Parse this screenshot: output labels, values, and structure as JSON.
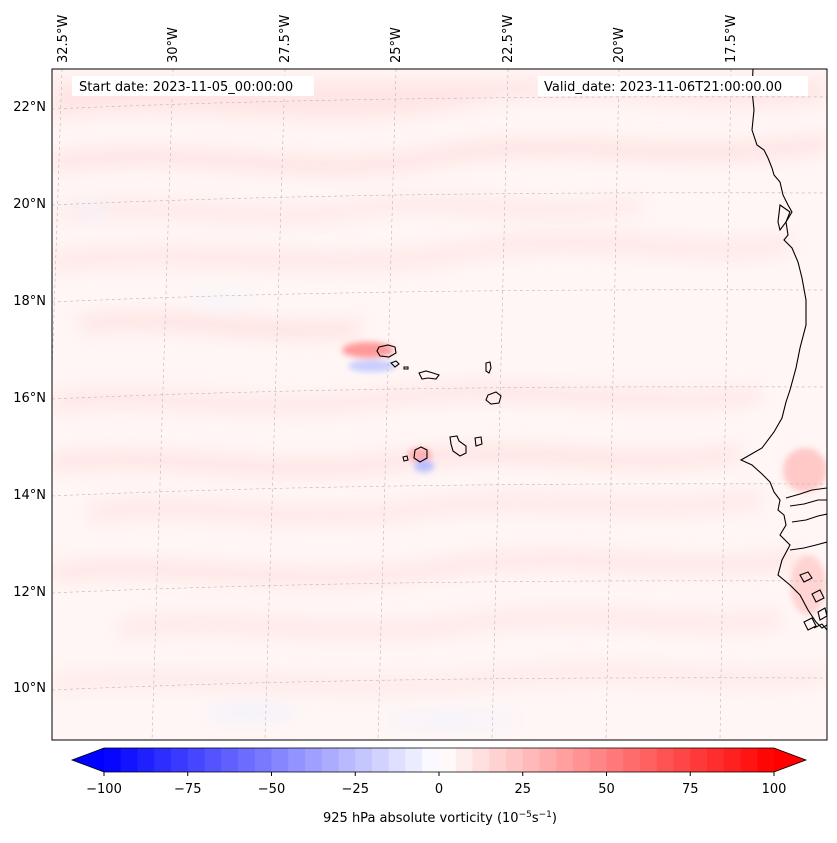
{
  "map": {
    "start_label": "Start date: 2023-11-05_00:00:00",
    "valid_label": "Valid_date: 2023-11-06T21:00:00.00",
    "lon_labels": [
      "32.5°W",
      "30°W",
      "27.5°W",
      "25°W",
      "22.5°W",
      "20°W",
      "17.5°W"
    ],
    "lat_labels": [
      "22°N",
      "20°N",
      "18°N",
      "16°N",
      "14°N",
      "12°N",
      "10°N"
    ],
    "extent": {
      "lon_min": -33.0,
      "lon_max": -15.9,
      "lat_min": 8.9,
      "lat_max": 22.8
    },
    "coastline_color": "#000000",
    "gridlines": "on"
  },
  "colorbar": {
    "label_main": "925 hPa absolute vorticity (10",
    "label_exp1": "−5",
    "label_mid": "s",
    "label_exp2": "−1",
    "label_end": ")",
    "min": -100,
    "max": 100,
    "ticks": [
      "−100",
      "−75",
      "−50",
      "−25",
      "0",
      "25",
      "50",
      "75",
      "100"
    ],
    "tick_values": [
      -100,
      -75,
      -50,
      -25,
      0,
      25,
      50,
      75,
      100
    ],
    "levels": 40,
    "color_low": "#0000ff",
    "color_mid": "#ffffff",
    "color_high": "#ff0000",
    "extend": "both"
  }
}
